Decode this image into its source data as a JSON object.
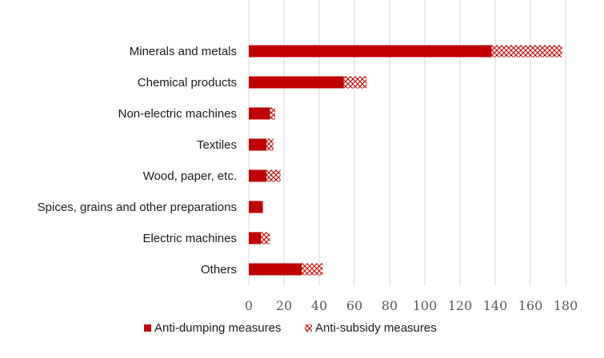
{
  "chart_data": {
    "type": "bar",
    "orientation": "horizontal",
    "stacked": true,
    "categories": [
      "Minerals and metals",
      "Chemical products",
      "Non-electric machines",
      "Textiles",
      "Wood, paper, etc.",
      "Spices, grains and other preparations",
      "Electric machines",
      "Others"
    ],
    "series": [
      {
        "name": "Anti-dumping measures",
        "values": [
          138,
          54,
          12,
          10,
          10,
          8,
          7,
          30
        ],
        "color": "#c00000",
        "pattern": "solid"
      },
      {
        "name": "Anti-subsidy measures",
        "values": [
          40,
          13,
          3,
          4,
          8,
          0,
          5,
          12
        ],
        "color": "#c00000",
        "pattern": "hatched"
      }
    ],
    "xticks": [
      0,
      20,
      40,
      60,
      80,
      100,
      120,
      140,
      160,
      180
    ],
    "xlim": [
      0,
      180
    ],
    "grid": "vertical",
    "legend_position": "bottom-left",
    "title": "",
    "xlabel": "",
    "ylabel": ""
  }
}
